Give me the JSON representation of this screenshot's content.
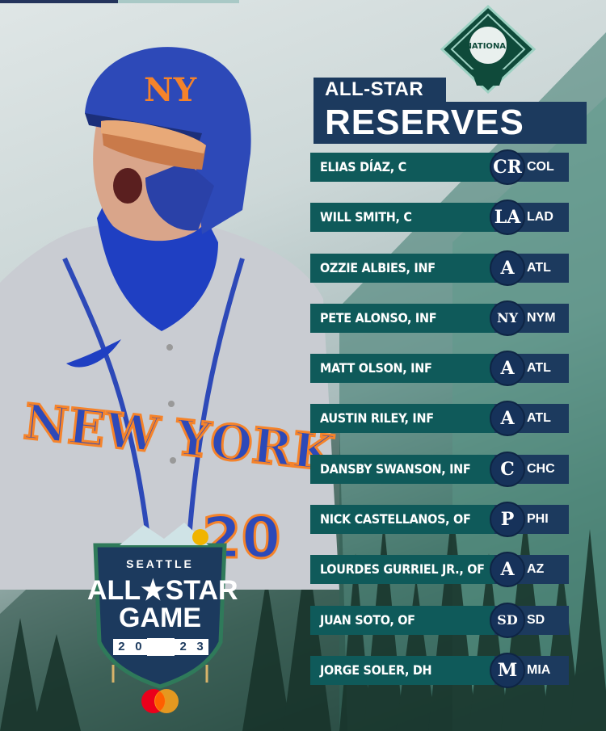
{
  "header": {
    "title_line1": "ALL-STAR",
    "title_line2": "RESERVES",
    "league_logo": "National League logo",
    "league_text": "NATIONAL"
  },
  "player": {
    "jersey_text": "NEW YORK",
    "number": "20"
  },
  "roster": [
    {
      "name": "ELIAS DÍAZ, C",
      "team": "COL",
      "mark": "CR"
    },
    {
      "name": "WILL SMITH, C",
      "team": "LAD",
      "mark": "LA"
    },
    {
      "name": "OZZIE ALBIES, INF",
      "team": "ATL",
      "mark": "A"
    },
    {
      "name": "PETE ALONSO, INF",
      "team": "NYM",
      "mark": "NY"
    },
    {
      "name": "MATT OLSON, INF",
      "team": "ATL",
      "mark": "A"
    },
    {
      "name": "AUSTIN RILEY, INF",
      "team": "ATL",
      "mark": "A"
    },
    {
      "name": "DANSBY SWANSON, INF",
      "team": "CHC",
      "mark": "C"
    },
    {
      "name": "NICK CASTELLANOS, OF",
      "team": "PHI",
      "mark": "P"
    },
    {
      "name": "LOURDES GURRIEL JR., OF",
      "team": "AZ",
      "mark": "A"
    },
    {
      "name": "JUAN SOTO, OF",
      "team": "SD",
      "mark": "SD"
    },
    {
      "name": "JORGE SOLER, DH",
      "team": "MIA",
      "mark": "M"
    }
  ],
  "event_logo": {
    "city": "SEATTLE",
    "line1": "ALL★STAR",
    "line2": "GAME",
    "year_digits": [
      "2",
      "0",
      "2",
      "3"
    ]
  },
  "sponsor": "mastercard-logo",
  "colors": {
    "navy": "#1c3a5e",
    "teal": "#0f5a5a",
    "mets_blue": "#2d49b8",
    "mets_orange": "#f5832a"
  }
}
